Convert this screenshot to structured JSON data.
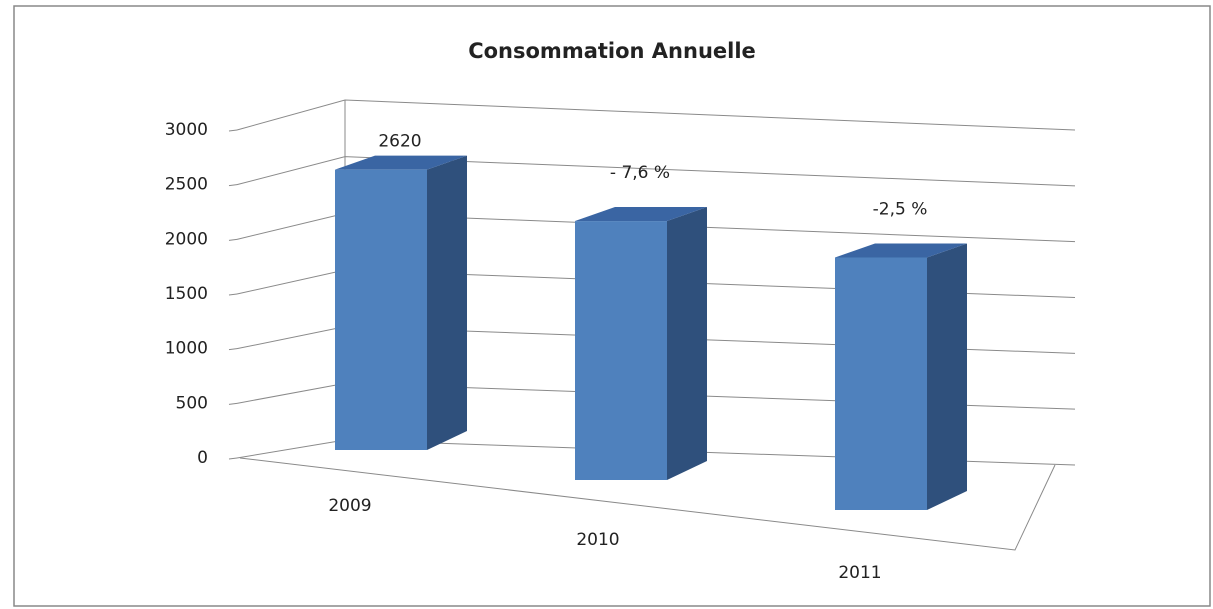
{
  "chart_data": {
    "type": "bar3d",
    "title": "Consommation Annuelle",
    "categories": [
      "2009",
      "2010",
      "2011"
    ],
    "values": [
      2620,
      2420,
      2360
    ],
    "annotations": [
      "- 7,6 %",
      "-2,5 %"
    ],
    "color": "#4f81bd",
    "ylim": [
      0,
      3000
    ],
    "yticks": [
      0,
      500,
      1000,
      1500,
      2000,
      2500,
      3000
    ],
    "grid": true
  }
}
